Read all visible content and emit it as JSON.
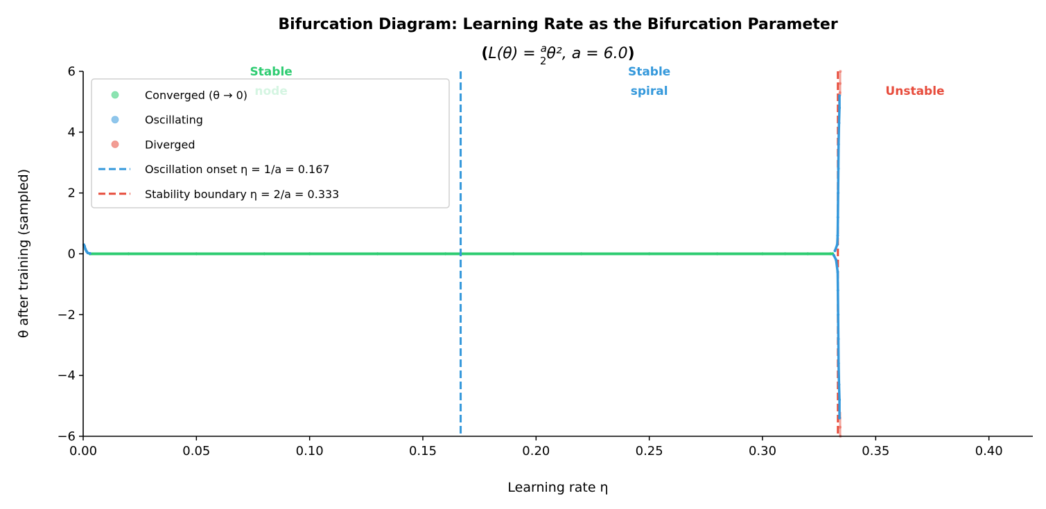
{
  "chart_data": {
    "type": "scatter",
    "title": "Bifurcation Diagram: Learning Rate as the Bifurcation Parameter",
    "subtitle": {
      "prefix": "(",
      "formula_lhs": "L(θ) = ",
      "frac_num": "a",
      "frac_den": "2",
      "formula_rhs": "θ²,  a = 6.0",
      "suffix": ")"
    },
    "xlabel": "Learning rate η",
    "ylabel": "θ after training (sampled)",
    "xlim": [
      0,
      0.42
    ],
    "ylim": [
      -6,
      6
    ],
    "xticks": [
      "0.00",
      "0.05",
      "0.10",
      "0.15",
      "0.20",
      "0.25",
      "0.30",
      "0.35",
      "0.40"
    ],
    "yticks": [
      "−6",
      "−4",
      "−2",
      "0",
      "2",
      "4",
      "6"
    ],
    "xtick_values": [
      0,
      0.05,
      0.1,
      0.15,
      0.2,
      0.25,
      0.3,
      0.35,
      0.4
    ],
    "ytick_values": [
      -6,
      -4,
      -2,
      0,
      2,
      4,
      6
    ],
    "grid": false,
    "legend_placement": "top-left",
    "colors": {
      "converged": "#2ecc71",
      "oscillating": "#3498db",
      "diverged": "#e74c3c"
    },
    "series": [
      {
        "name": "Converged (θ → 0)",
        "kind": "scatter",
        "x": [
          0.003,
          0.02,
          0.05,
          0.08,
          0.1,
          0.13,
          0.16,
          0.19,
          0.22,
          0.25,
          0.28,
          0.3,
          0.31,
          0.32,
          0.33,
          0.331
        ],
        "y": [
          0,
          0,
          0,
          0,
          0,
          0,
          0,
          0,
          0,
          0,
          0,
          0,
          0,
          0,
          0,
          0
        ]
      },
      {
        "name": "Oscillating",
        "kind": "scatter",
        "x": [
          0.0003,
          0.0006,
          0.001,
          0.0015,
          0.002,
          0.003,
          0.3315,
          0.332,
          0.3325,
          0.333,
          0.3332,
          0.3333,
          0.3334,
          0.3335,
          0.3336,
          0.3338,
          0.334,
          0.334,
          0.3332,
          0.3333,
          0.3334,
          0.3335,
          0.3336,
          0.3338,
          0.334,
          0.334
        ],
        "y": [
          0.3,
          0.25,
          0.15,
          0.08,
          0.03,
          0.01,
          -0.05,
          0.1,
          -0.2,
          0.3,
          0.6,
          1.2,
          2,
          2.8,
          3.6,
          4.3,
          4.8,
          5.2,
          -0.6,
          -1.2,
          -2,
          -2.8,
          -3.6,
          -4.3,
          -4.8,
          -5.4
        ]
      },
      {
        "name": "Diverged",
        "kind": "scatter",
        "x": [
          0.3342,
          0.3343,
          0.3344,
          0.3342,
          0.3343,
          0.3344
        ],
        "y": [
          5.3,
          5.6,
          6,
          -5.4,
          -5.7,
          -6
        ]
      },
      {
        "name": "Oscillation onset  η = 1/a = 0.167",
        "kind": "vline",
        "x": 0.1667
      },
      {
        "name": "Stability boundary  η = 2/a = 0.333",
        "kind": "vline",
        "x": 0.3333
      }
    ],
    "annotations": [
      {
        "text_lines": [
          "Stable",
          "node"
        ],
        "x": 0.083,
        "color": "#2ecc71"
      },
      {
        "text_lines": [
          "Stable",
          "spiral"
        ],
        "x": 0.25,
        "color": "#3498db"
      },
      {
        "text_lines": [
          "Unstable"
        ],
        "x": 0.375,
        "color": "#e74c3c"
      }
    ]
  }
}
